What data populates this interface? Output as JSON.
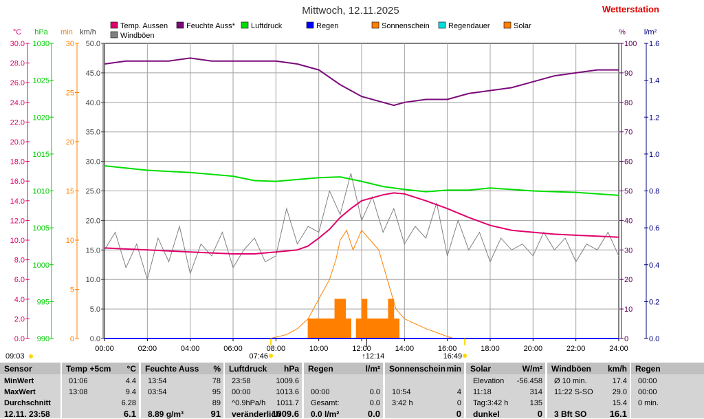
{
  "title": "Mittwoch, 12.11.2025",
  "brand": "Wetterstation",
  "legend": [
    {
      "label": "Temp. Aussen",
      "color": "#e0006c"
    },
    {
      "label": "Feuchte Auss*",
      "color": "#7a0a7a"
    },
    {
      "label": "Luftdruck",
      "color": "#00dd00"
    },
    {
      "label": "Regen",
      "color": "#0000ff"
    },
    {
      "label": "Sonnenschein",
      "color": "#ff7f00"
    },
    {
      "label": "Regendauer",
      "color": "#00dddd"
    },
    {
      "label": "Solar",
      "color": "#ff8000"
    },
    {
      "label": "Windböen",
      "color": "#808080"
    }
  ],
  "chart_data": {
    "type": "line",
    "x_ticks": [
      "00:00",
      "02:00",
      "04:00",
      "06:00",
      "08:00",
      "10:00",
      "12:00",
      "14:00",
      "16:00",
      "18:00",
      "20:00",
      "22:00",
      "24:00"
    ],
    "axes": {
      "temp": {
        "unit": "°C",
        "ticks": [
          "30.0",
          "28.0",
          "26.0",
          "24.0",
          "22.0",
          "20.0",
          "18.0",
          "16.0",
          "14.0",
          "12.0",
          "10.0",
          "8.0",
          "6.0",
          "4.0",
          "2.0",
          "0.0"
        ],
        "color": "#e0006c"
      },
      "pressure": {
        "unit": "hPa",
        "ticks": [
          "1030",
          "1025",
          "1020",
          "1015",
          "1010",
          "1005",
          "1000",
          "995",
          "990"
        ],
        "color": "#00cc00"
      },
      "minutes": {
        "unit": "min",
        "ticks": [
          "30",
          "25",
          "20",
          "15",
          "10",
          "5",
          "0"
        ],
        "color": "#ff8000"
      },
      "wind": {
        "unit": "km/h",
        "ticks": [
          "50.0",
          "45.0",
          "40.0",
          "35.0",
          "30.0",
          "25.0",
          "20.0",
          "15.0",
          "10.0",
          "5.0",
          "0.0"
        ],
        "color": "#404040"
      },
      "humidity": {
        "unit": "%",
        "ticks": [
          "100",
          "90",
          "80",
          "70",
          "60",
          "50",
          "40",
          "30",
          "20",
          "10",
          "0"
        ],
        "color": "#5a005a"
      },
      "rain": {
        "unit": "l/m²",
        "ticks": [
          "1.6",
          "1.4",
          "1.2",
          "1.0",
          "0.8",
          "0.6",
          "0.4",
          "0.2",
          "0.0"
        ],
        "color": "#000080"
      }
    },
    "series": [
      {
        "name": "Temp. Aussen",
        "axis": "temp",
        "points": [
          [
            0,
            9.2
          ],
          [
            1,
            9.1
          ],
          [
            2,
            9.0
          ],
          [
            3,
            8.9
          ],
          [
            4,
            8.8
          ],
          [
            5,
            8.7
          ],
          [
            6,
            8.6
          ],
          [
            7,
            8.6
          ],
          [
            8,
            8.8
          ],
          [
            9,
            9.0
          ],
          [
            9.5,
            9.4
          ],
          [
            10,
            10.2
          ],
          [
            10.5,
            11.1
          ],
          [
            11,
            12.3
          ],
          [
            11.5,
            13.2
          ],
          [
            12,
            14.0
          ],
          [
            13,
            14.6
          ],
          [
            13.5,
            14.8
          ],
          [
            14,
            14.7
          ],
          [
            15,
            14.0
          ],
          [
            16,
            13.2
          ],
          [
            17,
            12.3
          ],
          [
            18,
            11.5
          ],
          [
            19,
            11.0
          ],
          [
            20,
            10.8
          ],
          [
            21,
            10.6
          ],
          [
            22,
            10.5
          ],
          [
            23,
            10.4
          ],
          [
            24,
            10.3
          ]
        ]
      },
      {
        "name": "Feuchte Auss*",
        "axis": "humidity",
        "points": [
          [
            0,
            93
          ],
          [
            1,
            94
          ],
          [
            2,
            94
          ],
          [
            3,
            94
          ],
          [
            4,
            95
          ],
          [
            5,
            94
          ],
          [
            6,
            94
          ],
          [
            7,
            94
          ],
          [
            8,
            94
          ],
          [
            9,
            93
          ],
          [
            10,
            91
          ],
          [
            11,
            86
          ],
          [
            11.5,
            84
          ],
          [
            12,
            82
          ],
          [
            13,
            80
          ],
          [
            13.5,
            79
          ],
          [
            14,
            80
          ],
          [
            15,
            81
          ],
          [
            16,
            81
          ],
          [
            17,
            83
          ],
          [
            18,
            84
          ],
          [
            19,
            85
          ],
          [
            20,
            87
          ],
          [
            21,
            89
          ],
          [
            22,
            90
          ],
          [
            23,
            91
          ],
          [
            24,
            91
          ]
        ]
      },
      {
        "name": "Luftdruck",
        "axis": "pressure",
        "points": [
          [
            0,
            1013.4
          ],
          [
            2,
            1012.8
          ],
          [
            4,
            1012.5
          ],
          [
            6,
            1012.0
          ],
          [
            7,
            1011.4
          ],
          [
            8,
            1011.3
          ],
          [
            10,
            1011.8
          ],
          [
            11,
            1011.9
          ],
          [
            12,
            1011.3
          ],
          [
            13,
            1010.6
          ],
          [
            14,
            1010.2
          ],
          [
            15,
            1009.9
          ],
          [
            16,
            1010.1
          ],
          [
            17,
            1010.1
          ],
          [
            18,
            1010.4
          ],
          [
            19,
            1010.2
          ],
          [
            20,
            1010.0
          ],
          [
            21,
            1009.9
          ],
          [
            22,
            1009.8
          ],
          [
            23,
            1009.6
          ],
          [
            24,
            1009.4
          ]
        ]
      },
      {
        "name": "Windböen",
        "axis": "wind",
        "points": [
          [
            0,
            15
          ],
          [
            0.5,
            18
          ],
          [
            1,
            12
          ],
          [
            1.5,
            16
          ],
          [
            2,
            10
          ],
          [
            2.5,
            17
          ],
          [
            3,
            13
          ],
          [
            3.5,
            19
          ],
          [
            4,
            11
          ],
          [
            4.5,
            16
          ],
          [
            5,
            14
          ],
          [
            5.5,
            18
          ],
          [
            6,
            12
          ],
          [
            6.5,
            15
          ],
          [
            7,
            17
          ],
          [
            7.5,
            13
          ],
          [
            8,
            14
          ],
          [
            8.5,
            22
          ],
          [
            9,
            16
          ],
          [
            9.5,
            19
          ],
          [
            10,
            18
          ],
          [
            10.5,
            25
          ],
          [
            11,
            21
          ],
          [
            11.5,
            28
          ],
          [
            12,
            20
          ],
          [
            12.5,
            24
          ],
          [
            13,
            18
          ],
          [
            13.5,
            22
          ],
          [
            14,
            16
          ],
          [
            14.5,
            19
          ],
          [
            15,
            17
          ],
          [
            15.5,
            23
          ],
          [
            16,
            14
          ],
          [
            16.5,
            20
          ],
          [
            17,
            15
          ],
          [
            17.5,
            18
          ],
          [
            18,
            13
          ],
          [
            18.5,
            17
          ],
          [
            19,
            15
          ],
          [
            19.5,
            16
          ],
          [
            20,
            14
          ],
          [
            20.5,
            18
          ],
          [
            21,
            15
          ],
          [
            21.5,
            17
          ],
          [
            22,
            13
          ],
          [
            22.5,
            16
          ],
          [
            23,
            15
          ],
          [
            23.5,
            18
          ],
          [
            24,
            14
          ]
        ]
      },
      {
        "name": "Solar",
        "axis": "minutes",
        "points": [
          [
            7.75,
            0
          ],
          [
            8.5,
            0.4
          ],
          [
            9,
            1
          ],
          [
            9.5,
            2
          ],
          [
            10,
            4
          ],
          [
            10.5,
            6
          ],
          [
            10.8,
            8
          ],
          [
            11,
            10
          ],
          [
            11.3,
            11
          ],
          [
            11.6,
            9
          ],
          [
            12,
            11
          ],
          [
            12.4,
            10
          ],
          [
            12.8,
            9
          ],
          [
            13.2,
            6
          ],
          [
            13.6,
            3
          ],
          [
            14,
            2
          ],
          [
            14.5,
            1.5
          ],
          [
            15,
            1
          ],
          [
            15.5,
            0.6
          ],
          [
            16.0,
            0.2
          ],
          [
            16.3,
            0
          ]
        ]
      },
      {
        "name": "Regen",
        "axis": "rain",
        "points": [
          [
            0,
            0
          ],
          [
            24,
            0
          ]
        ]
      }
    ],
    "bars": {
      "name": "Sonnenschein",
      "axis": "minutes",
      "values": [
        [
          9.5,
          2
        ],
        [
          9.75,
          2
        ],
        [
          10,
          2
        ],
        [
          10.25,
          2
        ],
        [
          10.5,
          2
        ],
        [
          10.75,
          4
        ],
        [
          11,
          4
        ],
        [
          11.25,
          2
        ],
        [
          11.75,
          2
        ],
        [
          12,
          4
        ],
        [
          12.25,
          2
        ],
        [
          12.5,
          2
        ],
        [
          12.75,
          2
        ],
        [
          13,
          2
        ],
        [
          13.25,
          4
        ],
        [
          13.5,
          2
        ]
      ]
    }
  },
  "markers": {
    "sunrise": "07:46",
    "sunset": "16:49",
    "noon": "12:14",
    "left": "09:03"
  },
  "table": [
    {
      "header": [
        "Sensor",
        ""
      ],
      "rows": [
        [
          "MinWert",
          ""
        ],
        [
          "MaxWert",
          ""
        ],
        [
          "Durchschnitt",
          ""
        ],
        [
          "12.11. 23:58",
          ""
        ]
      ]
    },
    {
      "header": [
        "Temp +5cm",
        "°C"
      ],
      "rows": [
        [
          "01:06",
          "4.4"
        ],
        [
          "13:08",
          "9.4"
        ],
        [
          "",
          "6.28"
        ],
        [
          "",
          "6.1"
        ]
      ]
    },
    {
      "header": [
        "Feuchte Auss",
        "%"
      ],
      "rows": [
        [
          "13:54",
          "78"
        ],
        [
          "03:54",
          "95"
        ],
        [
          "",
          "89"
        ],
        [
          "8.89 g/m³",
          "91"
        ]
      ]
    },
    {
      "header": [
        "Luftdruck",
        "hPa"
      ],
      "rows": [
        [
          "23:58",
          "1009.6"
        ],
        [
          "00:00",
          "1013.6"
        ],
        [
          "^0.9hPa/h",
          "1011.7"
        ],
        [
          "veränderlich",
          "1009.6"
        ]
      ]
    },
    {
      "header": [
        "Regen",
        "l/m²"
      ],
      "rows": [
        [
          "",
          ""
        ],
        [
          "00:00",
          "0.0"
        ],
        [
          "Gesamt:",
          "0.0"
        ],
        [
          "0.0 l/m²",
          "0.0"
        ]
      ]
    },
    {
      "header": [
        "Sonnenschein",
        "min"
      ],
      "rows": [
        [
          "",
          ""
        ],
        [
          "10:54",
          "4"
        ],
        [
          "3:42 h",
          "0"
        ],
        [
          "",
          "0"
        ]
      ]
    },
    {
      "header": [
        "Solar",
        "W/m²"
      ],
      "rows": [
        [
          "Elevation",
          "-56.458"
        ],
        [
          "11:18",
          "314"
        ],
        [
          "Tag:3:42 h",
          "135"
        ],
        [
          "dunkel",
          "0"
        ]
      ]
    },
    {
      "header": [
        "Windböen",
        "km/h"
      ],
      "rows": [
        [
          "Ø 10 min.",
          "17.4"
        ],
        [
          "11:22    S-SO",
          "29.0"
        ],
        [
          "",
          "15.4"
        ],
        [
          "3 Bft SO",
          "16.1"
        ]
      ]
    },
    {
      "header": [
        "Regen",
        ""
      ],
      "rows": [
        [
          "00:00",
          ""
        ],
        [
          "00:00",
          ""
        ],
        [
          "0 min.",
          ""
        ],
        [
          "",
          ""
        ]
      ]
    }
  ]
}
